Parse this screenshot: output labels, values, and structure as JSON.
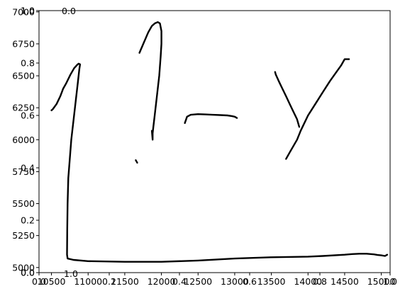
{
  "chart_data": {
    "type": "line",
    "grid": false,
    "legend": "none",
    "line_color": "#000000",
    "ink_axes": {
      "x": {
        "range": [
          10330,
          15120
        ],
        "ticks": [
          10500,
          11000,
          11500,
          12000,
          12500,
          13000,
          13500,
          14000,
          14500,
          15000
        ],
        "tick_labels": [
          "10500",
          "11000",
          "11500",
          "12000",
          "12500",
          "13000",
          "13500",
          "14000",
          "14500",
          "15000"
        ]
      },
      "y": {
        "range": [
          4960,
          7010
        ],
        "ticks": [
          5000,
          5250,
          5500,
          5750,
          6000,
          6250,
          6500,
          6750,
          7000
        ],
        "tick_labels": [
          "5000",
          "5250",
          "5500",
          "5750",
          "6000",
          "6250",
          "6500",
          "6750",
          "7000"
        ]
      }
    },
    "overlay_axes": [
      {
        "x_ticks": [
          0.0,
          0.2,
          0.4,
          0.6,
          0.8,
          1.0
        ],
        "x_tick_labels": [
          "0.0",
          "0.2",
          "0.4",
          "0.6",
          "0.8",
          "1.0"
        ],
        "y_ticks": [
          0.0,
          0.2,
          0.4,
          0.6,
          0.8,
          1.0
        ],
        "y_tick_labels": [
          "0.0",
          "0.2",
          "0.4",
          "0.6",
          "0.8",
          "1.0"
        ]
      },
      {
        "x_ticks": [
          0.0,
          1.0
        ],
        "x_tick_labels": [
          "0.0",
          "1.0"
        ],
        "y_ticks": [
          0.0,
          1.0
        ],
        "y_tick_labels": [
          "0.0",
          "1.0"
        ]
      }
    ],
    "series": [
      {
        "x": [
          10500,
          10520,
          10570,
          10620,
          10660,
          10700,
          10760,
          10810,
          10850,
          10870,
          10890,
          10880,
          10860,
          10830,
          10800,
          10770,
          10750,
          10730,
          10720,
          10715,
          10712,
          10720,
          10800,
          11000,
          11500,
          12000,
          12500,
          13000,
          13500,
          14000,
          14200,
          14500,
          14600,
          14700,
          14800,
          14900,
          14950,
          15000,
          15050,
          15080
        ],
        "y": [
          6230,
          6240,
          6280,
          6340,
          6400,
          6440,
          6510,
          6560,
          6585,
          6595,
          6590,
          6550,
          6450,
          6300,
          6150,
          6000,
          5850,
          5700,
          5500,
          5300,
          5100,
          5070,
          5060,
          5050,
          5045,
          5045,
          5055,
          5070,
          5080,
          5085,
          5090,
          5100,
          5105,
          5108,
          5108,
          5103,
          5098,
          5095,
          5090,
          5100
        ]
      },
      {
        "x": [
          11650,
          11670
        ],
        "y": [
          5840,
          5820
        ]
      },
      {
        "x": [
          11700,
          11760,
          11820,
          11870,
          11910,
          11950,
          11980,
          12000,
          12000,
          11990,
          11970,
          11940,
          11910,
          11890,
          11880,
          11880,
          11870
        ],
        "y": [
          6680,
          6760,
          6840,
          6890,
          6910,
          6920,
          6910,
          6850,
          6750,
          6650,
          6500,
          6350,
          6200,
          6100,
          6050,
          6000,
          6070
        ]
      },
      {
        "x": [
          12320,
          12350,
          12400,
          12500,
          12600,
          12700,
          12800,
          12900,
          12960,
          13000,
          13030
        ],
        "y": [
          6130,
          6180,
          6195,
          6200,
          6198,
          6195,
          6193,
          6190,
          6185,
          6180,
          6170
        ]
      },
      {
        "x": [
          13550,
          13560,
          13600,
          13650,
          13700,
          13750,
          13800,
          13850,
          13880
        ],
        "y": [
          6530,
          6510,
          6460,
          6400,
          6340,
          6280,
          6220,
          6160,
          6100
        ]
      },
      {
        "x": [
          13700,
          13750,
          13800,
          13850,
          13900,
          13950,
          14000,
          14100,
          14200,
          14300,
          14400,
          14450,
          14500,
          14560
        ],
        "y": [
          5850,
          5900,
          5950,
          6000,
          6070,
          6130,
          6190,
          6280,
          6370,
          6460,
          6540,
          6580,
          6630,
          6630
        ]
      }
    ]
  }
}
